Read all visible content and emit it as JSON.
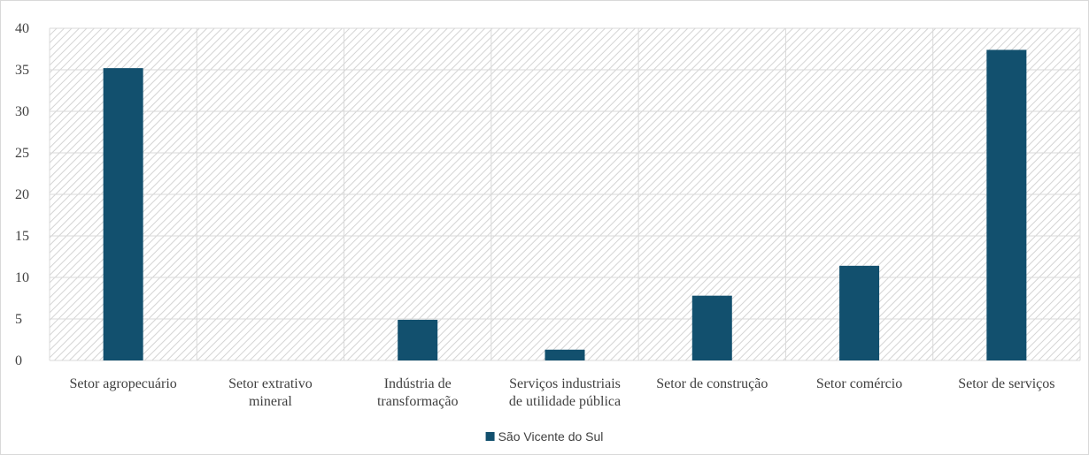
{
  "chart_data": {
    "type": "bar",
    "categories": [
      [
        "Setor agropecuário"
      ],
      [
        "Setor extrativo",
        "mineral"
      ],
      [
        "Indústria de",
        "transformação"
      ],
      [
        "Serviços industriais",
        "de utilidade pública"
      ],
      [
        "Setor de construção"
      ],
      [
        "Setor comércio"
      ],
      [
        "Setor de serviços"
      ]
    ],
    "series": [
      {
        "name": "São Vicente do Sul",
        "values": [
          35.2,
          0,
          4.9,
          1.3,
          7.8,
          11.4,
          37.4
        ],
        "color": "#12506e"
      }
    ],
    "ylim": [
      0,
      40
    ],
    "yticks": [
      "0",
      "5",
      "10",
      "15",
      "20",
      "25",
      "30",
      "35",
      "40"
    ],
    "grid": true,
    "plot_background": "hatched",
    "legend_position": "bottom",
    "title": "",
    "xlabel": "",
    "ylabel": ""
  }
}
